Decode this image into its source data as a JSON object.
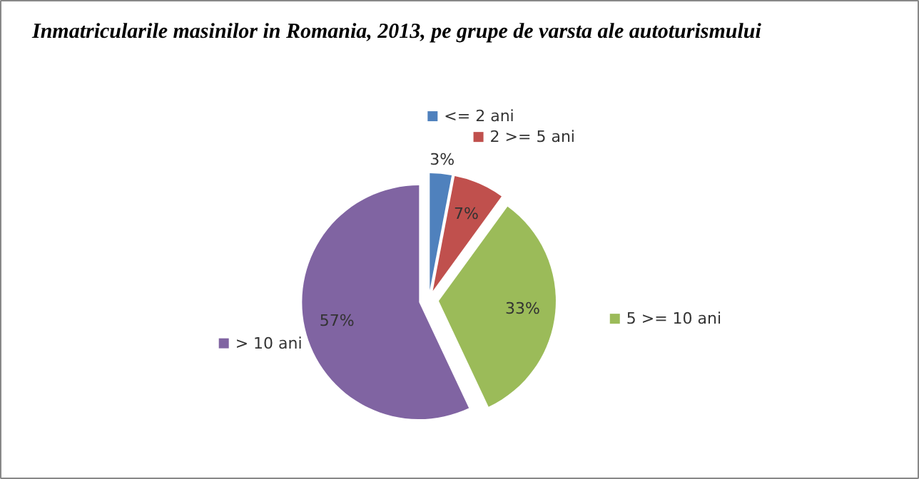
{
  "chart_data": {
    "type": "pie",
    "title": "Inmatricularile masinilor in Romania, 2013, pe grupe de varsta ale autoturismului",
    "categories": [
      "<= 2 ani",
      "2 >= 5 ani",
      "5 >= 10 ani",
      "> 10 ani"
    ],
    "values": [
      3,
      7,
      33,
      57
    ],
    "colors": [
      "#4f81bd",
      "#c0504d",
      "#9bbb59",
      "#8064a2"
    ],
    "value_labels": [
      "3%",
      "7%",
      "33%",
      "57%"
    ],
    "legend": "top right"
  }
}
